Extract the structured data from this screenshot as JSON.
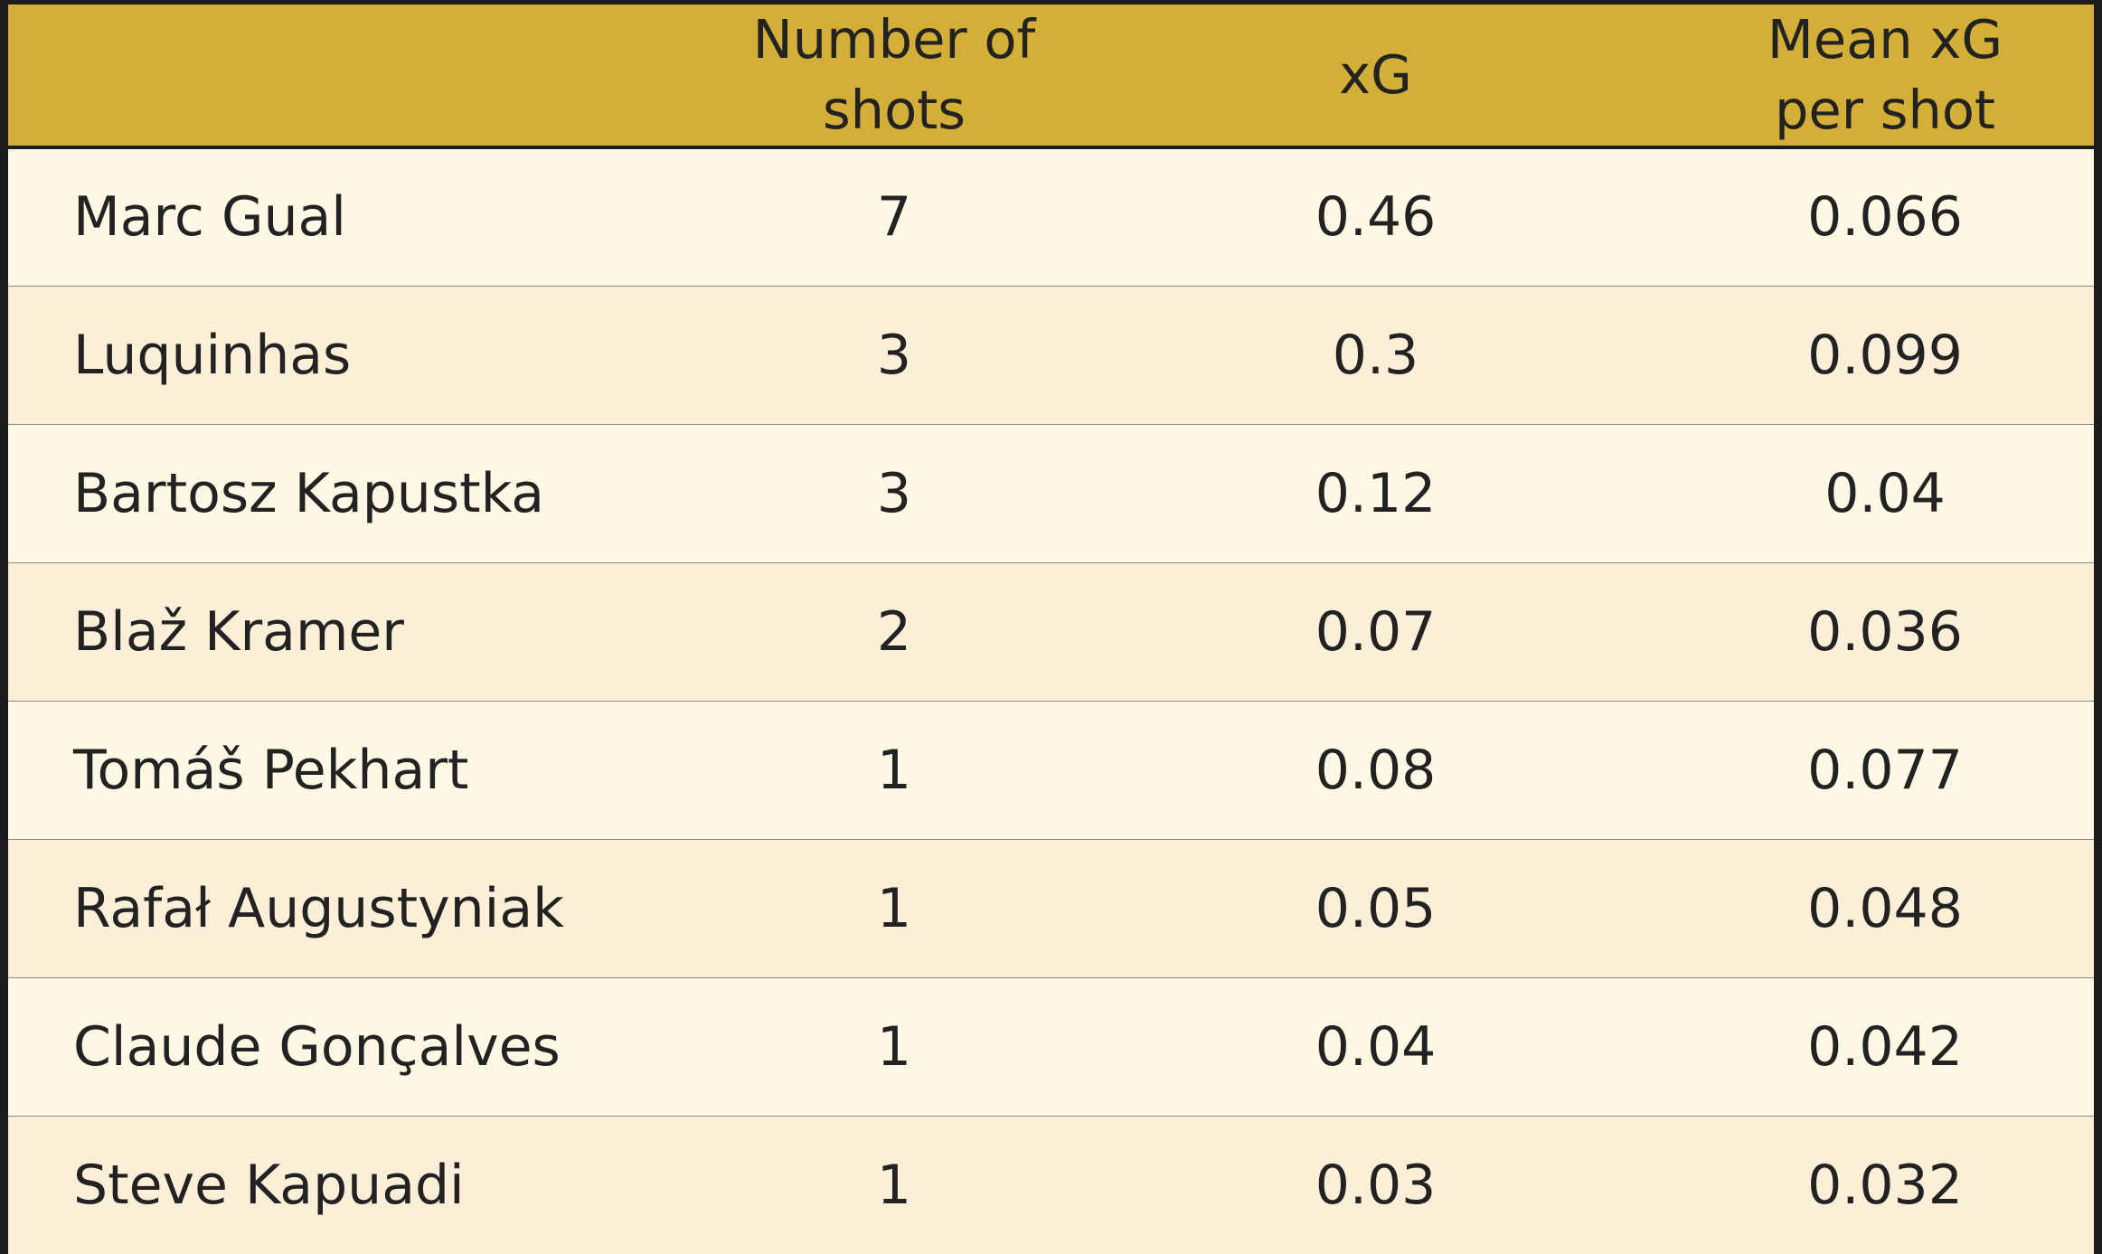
{
  "chart_data": {
    "type": "table",
    "columns": [
      "",
      "Number of shots",
      "xG",
      "Mean xG per shot"
    ],
    "header_lines": [
      [
        ""
      ],
      [
        "Number of",
        "shots"
      ],
      [
        "xG"
      ],
      [
        "Mean xG",
        "per shot"
      ]
    ],
    "rows": [
      {
        "player": "Marc Gual",
        "shots": "7",
        "xg": "0.46",
        "mean_xg": "0.066"
      },
      {
        "player": "Luquinhas",
        "shots": "3",
        "xg": "0.3",
        "mean_xg": "0.099"
      },
      {
        "player": "Bartosz Kapustka",
        "shots": "3",
        "xg": "0.12",
        "mean_xg": "0.04"
      },
      {
        "player": "Blaž Kramer",
        "shots": "2",
        "xg": "0.07",
        "mean_xg": "0.036"
      },
      {
        "player": "Tomáš Pekhart",
        "shots": "1",
        "xg": "0.08",
        "mean_xg": "0.077"
      },
      {
        "player": "Rafał Augustyniak",
        "shots": "1",
        "xg": "0.05",
        "mean_xg": "0.048"
      },
      {
        "player": "Claude Gonçalves",
        "shots": "1",
        "xg": "0.04",
        "mean_xg": "0.042"
      },
      {
        "player": "Steve Kapuadi",
        "shots": "1",
        "xg": "0.03",
        "mean_xg": "0.032"
      }
    ]
  },
  "colors": {
    "header_background": "#d4af37",
    "row_light": "#fdf8e4",
    "row_warm": "#fcefd8",
    "frame": "#1c1c1c",
    "text": "#222222"
  }
}
